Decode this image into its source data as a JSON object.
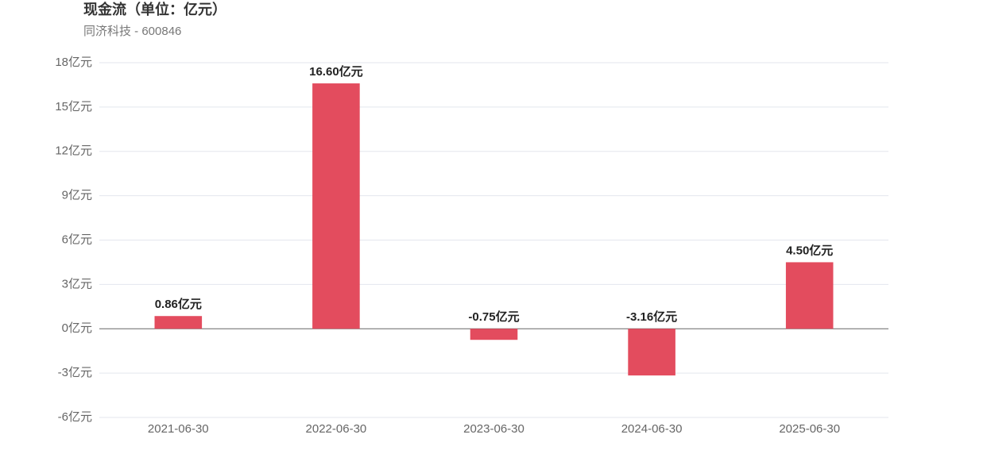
{
  "chart_data": {
    "type": "bar",
    "title": "现金流（单位：亿元）",
    "subtitle": "同济科技 - 600846",
    "categories": [
      "2021-06-30",
      "2022-06-30",
      "2023-06-30",
      "2024-06-30",
      "2025-06-30"
    ],
    "values": [
      0.86,
      16.6,
      -0.75,
      -3.16,
      4.5
    ],
    "value_labels": [
      "0.86亿元",
      "16.60亿元",
      "-0.75亿元",
      "-3.16亿元",
      "4.50亿元"
    ],
    "color": "#e34c5e",
    "ylim": [
      -6,
      18
    ],
    "yticks": [
      {
        "value": -6,
        "label": "-6亿元"
      },
      {
        "value": -3,
        "label": "-3亿元"
      },
      {
        "value": 0,
        "label": "0亿元"
      },
      {
        "value": 3,
        "label": "3亿元"
      },
      {
        "value": 6,
        "label": "6亿元"
      },
      {
        "value": 9,
        "label": "9亿元"
      },
      {
        "value": 12,
        "label": "12亿元"
      },
      {
        "value": 15,
        "label": "15亿元"
      },
      {
        "value": 18,
        "label": "18亿元"
      }
    ],
    "grid": true
  }
}
